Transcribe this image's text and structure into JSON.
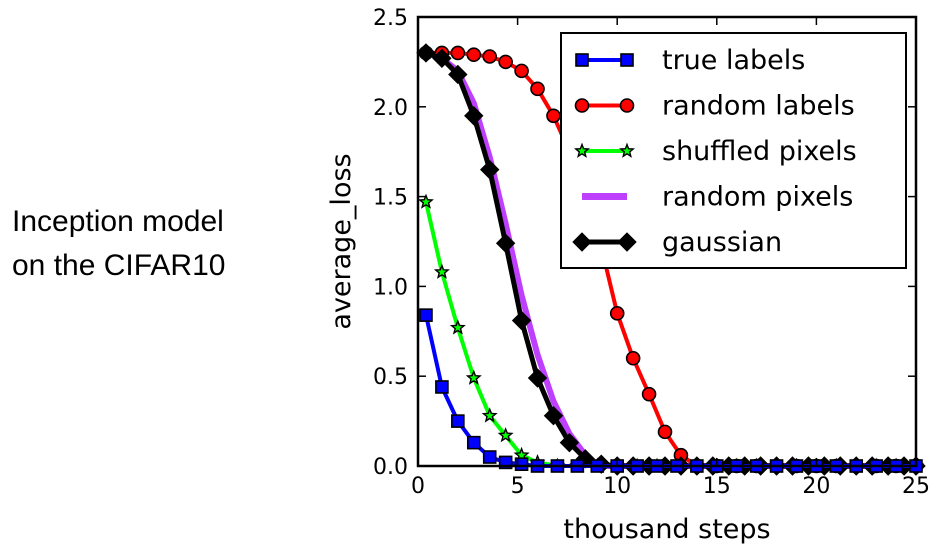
{
  "side_label": {
    "line1": "Inception model",
    "line2": "on the CIFAR10"
  },
  "chart_data": {
    "type": "line",
    "xlabel": "thousand steps",
    "ylabel": "average_loss",
    "xlim": [
      0,
      25
    ],
    "ylim": [
      0,
      2.5
    ],
    "xticks": [
      "0",
      "5",
      "10",
      "15",
      "20",
      "25"
    ],
    "yticks": [
      "0.0",
      "0.5",
      "1.0",
      "1.5",
      "2.0",
      "2.5"
    ],
    "legend_position": "top-right",
    "grid": false,
    "series": [
      {
        "name": "true labels",
        "color": "#0000ff",
        "marker": "square",
        "x": [
          0.4,
          1.2,
          2.0,
          2.8,
          3.6,
          4.4,
          5.2,
          6.0,
          7.0,
          8.0,
          9.0,
          10.0,
          11.0,
          12.0,
          13.0,
          14.0,
          15.0,
          16.0,
          17.0,
          18.0,
          19.0,
          20.0,
          21.0,
          22.0,
          23.0,
          24.0,
          25.0
        ],
        "y": [
          0.84,
          0.44,
          0.25,
          0.13,
          0.05,
          0.02,
          0.01,
          0.0,
          0.0,
          0.0,
          0.0,
          0.0,
          0.0,
          0.0,
          0.0,
          0.0,
          0.0,
          0.0,
          0.0,
          0.0,
          0.0,
          0.0,
          0.0,
          0.0,
          0.0,
          0.0,
          0.0
        ]
      },
      {
        "name": "random labels",
        "color": "#ff0000",
        "marker": "circle",
        "x": [
          0.4,
          1.2,
          2.0,
          2.8,
          3.6,
          4.4,
          5.2,
          6.0,
          6.8,
          7.6,
          8.4,
          9.2,
          10.0,
          10.8,
          11.6,
          12.4,
          13.2,
          14.0,
          15.0,
          16.0,
          17.0,
          18.0,
          19.0,
          20.0,
          21.0,
          22.0,
          23.0,
          24.0,
          25.0
        ],
        "y": [
          2.3,
          2.3,
          2.3,
          2.29,
          2.28,
          2.25,
          2.2,
          2.1,
          1.95,
          1.75,
          1.5,
          1.22,
          0.85,
          0.6,
          0.4,
          0.19,
          0.06,
          0.0,
          0.0,
          0.0,
          0.0,
          0.0,
          0.0,
          0.0,
          0.0,
          0.0,
          0.0,
          0.0,
          0.0
        ]
      },
      {
        "name": "shuffled pixels",
        "color": "#00ff00",
        "marker": "star",
        "x": [
          0.4,
          1.2,
          2.0,
          2.8,
          3.6,
          4.4,
          5.2,
          6.0,
          7.0,
          8.0,
          9.0,
          10.0,
          11.0,
          12.0,
          13.0,
          14.0,
          15.0,
          16.0,
          17.0,
          18.0,
          19.0,
          20.0,
          21.0,
          22.0,
          23.0,
          24.0,
          25.0
        ],
        "y": [
          1.47,
          1.08,
          0.77,
          0.49,
          0.28,
          0.17,
          0.06,
          0.02,
          0.0,
          0.0,
          0.0,
          0.0,
          0.0,
          0.0,
          0.0,
          0.0,
          0.0,
          0.0,
          0.0,
          0.0,
          0.0,
          0.0,
          0.0,
          0.0,
          0.0,
          0.0,
          0.0
        ]
      },
      {
        "name": "random pixels",
        "color": "#bf3fff",
        "marker": "none",
        "x": [
          0.4,
          1.2,
          2.0,
          2.8,
          3.6,
          4.4,
          5.2,
          6.0,
          6.8,
          7.6,
          8.4,
          9.0,
          10.0,
          11.0,
          12.0,
          13.0,
          14.0,
          15.0,
          16.0,
          17.0,
          18.0,
          19.0,
          20.0,
          21.0,
          22.0,
          23.0,
          24.0,
          25.0
        ],
        "y": [
          2.3,
          2.27,
          2.2,
          2.02,
          1.72,
          1.35,
          0.95,
          0.62,
          0.36,
          0.18,
          0.06,
          0.0,
          0.0,
          0.0,
          0.0,
          0.0,
          0.0,
          0.0,
          0.0,
          0.0,
          0.0,
          0.0,
          0.0,
          0.0,
          0.0,
          0.0,
          0.0,
          0.0
        ]
      },
      {
        "name": "gaussian",
        "color": "#000000",
        "marker": "diamond",
        "x": [
          0.4,
          1.2,
          2.0,
          2.8,
          3.6,
          4.4,
          5.2,
          6.0,
          6.8,
          7.6,
          8.4,
          9.2,
          10.0,
          10.8,
          11.6,
          12.4,
          13.2,
          14.0,
          14.8,
          15.6,
          16.4,
          17.2,
          18.0,
          18.8,
          19.6,
          20.4,
          21.2,
          22.0,
          22.8,
          23.6,
          24.4,
          25.0
        ],
        "y": [
          2.3,
          2.27,
          2.18,
          1.95,
          1.65,
          1.24,
          0.81,
          0.49,
          0.28,
          0.13,
          0.04,
          0.01,
          0.0,
          0.0,
          0.0,
          0.0,
          0.0,
          0.0,
          0.0,
          0.0,
          0.0,
          0.0,
          0.0,
          0.0,
          0.0,
          0.0,
          0.0,
          0.0,
          0.0,
          0.0,
          0.0,
          0.0
        ]
      }
    ]
  }
}
